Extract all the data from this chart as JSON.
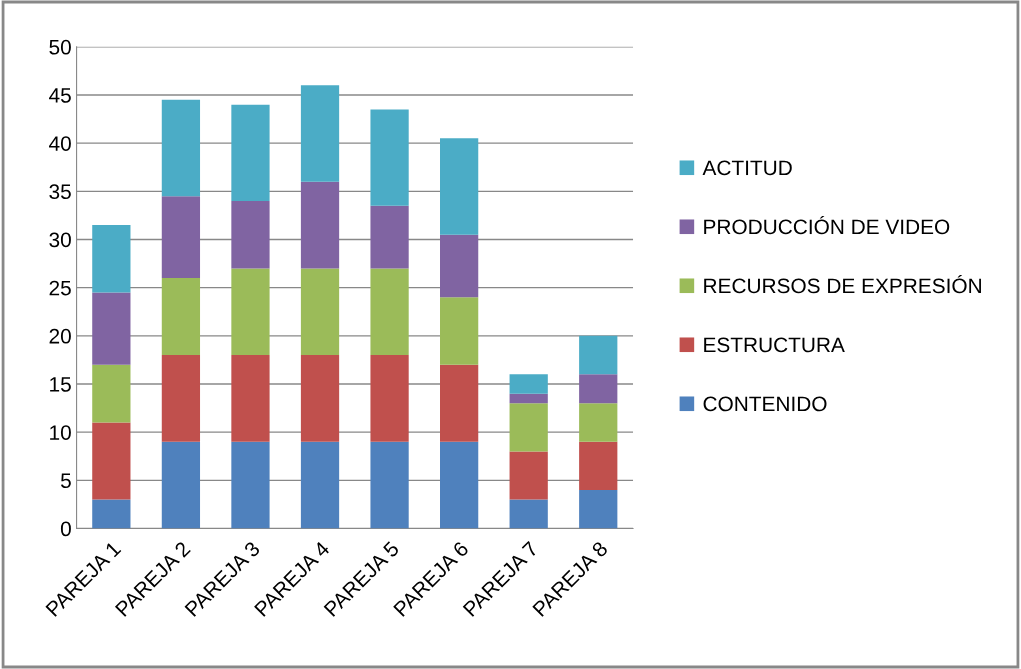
{
  "chart_data": {
    "type": "bar",
    "stacked": true,
    "categories": [
      "PAREJA 1",
      "PAREJA 2",
      "PAREJA 3",
      "PAREJA 4",
      "PAREJA 5",
      "PAREJA 6",
      "PAREJA 7",
      "PAREJA 8"
    ],
    "series": [
      {
        "name": "CONTENIDO",
        "color": "#4f81bd",
        "values": [
          3,
          9,
          9,
          9,
          9,
          9,
          3,
          4
        ]
      },
      {
        "name": "ESTRUCTURA",
        "color": "#c0504d",
        "values": [
          8,
          9,
          9,
          9,
          9,
          8,
          5,
          5
        ]
      },
      {
        "name": "RECURSOS DE EXPRESIÓN",
        "color": "#9bbb59",
        "values": [
          6,
          8,
          9,
          9,
          9,
          7,
          5,
          4
        ]
      },
      {
        "name": "PRODUCCIÓN DE VIDEO",
        "color": "#8064a2",
        "values": [
          7.5,
          8.5,
          7,
          9,
          6.5,
          6.5,
          1,
          3
        ]
      },
      {
        "name": "ACTITUD",
        "color": "#4bacc6",
        "values": [
          7,
          10,
          10,
          10,
          10,
          10,
          2,
          4
        ]
      }
    ],
    "ylim": [
      0,
      50
    ],
    "yticks": [
      0,
      5,
      10,
      15,
      20,
      25,
      30,
      35,
      40,
      45,
      50
    ],
    "grid": "y",
    "legend": "right"
  }
}
